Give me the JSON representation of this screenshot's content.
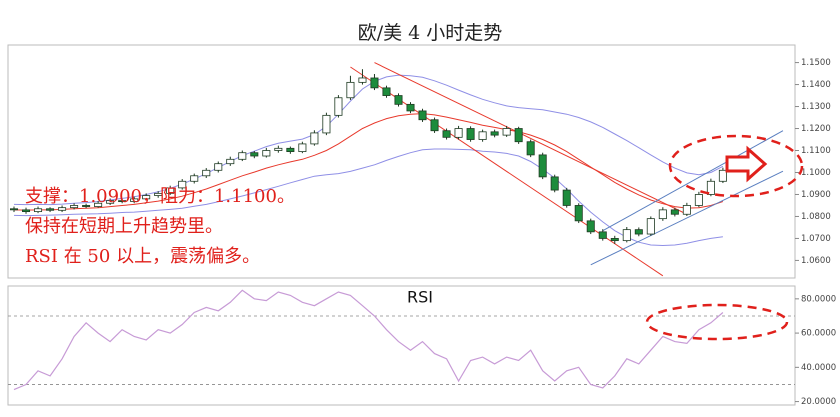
{
  "chart_data": [
    {
      "type": "candlestick",
      "title": "欧/美 4 小时走势",
      "open": [
        1.0835,
        1.083,
        1.0822,
        1.0835,
        1.0828,
        1.084,
        1.085,
        1.0845,
        1.086,
        1.0872,
        1.0868,
        1.088,
        1.0895,
        1.0905,
        1.093,
        1.096,
        1.0985,
        1.101,
        1.104,
        1.106,
        1.109,
        1.1075,
        1.11,
        1.111,
        1.1095,
        1.113,
        1.118,
        1.126,
        1.134,
        1.141,
        1.143,
        1.1385,
        1.135,
        1.131,
        1.128,
        1.124,
        1.119,
        1.116,
        1.12,
        1.115,
        1.1185,
        1.117,
        1.12,
        1.114,
        1.108,
        1.098,
        1.092,
        1.085,
        1.078,
        1.073,
        1.07,
        1.069,
        1.074,
        1.072,
        1.079,
        1.083,
        1.081,
        1.085,
        1.09,
        1.096
      ],
      "high": [
        1.0845,
        1.084,
        1.0845,
        1.0842,
        1.085,
        1.086,
        1.0858,
        1.087,
        1.0882,
        1.088,
        1.089,
        1.0905,
        1.0915,
        1.094,
        1.097,
        1.0995,
        1.102,
        1.105,
        1.1072,
        1.11,
        1.1098,
        1.1112,
        1.1122,
        1.1118,
        1.114,
        1.1192,
        1.1272,
        1.1352,
        1.144,
        1.147,
        1.1448,
        1.1395,
        1.136,
        1.132,
        1.129,
        1.125,
        1.12,
        1.1212,
        1.121,
        1.1195,
        1.1195,
        1.1212,
        1.1208,
        1.115,
        1.109,
        1.099,
        1.093,
        1.086,
        1.079,
        1.0742,
        1.0712,
        1.0752,
        1.075,
        1.08,
        1.0842,
        1.084,
        1.0862,
        1.0912,
        1.0972,
        1.1022
      ],
      "low": [
        1.082,
        1.0812,
        1.0815,
        1.082,
        1.082,
        1.0832,
        1.0838,
        1.084,
        1.0852,
        1.086,
        1.086,
        1.0872,
        1.0885,
        1.0898,
        1.0922,
        1.095,
        1.0975,
        1.1,
        1.103,
        1.1052,
        1.1065,
        1.1068,
        1.109,
        1.1085,
        1.1088,
        1.1122,
        1.117,
        1.125,
        1.133,
        1.14,
        1.1375,
        1.134,
        1.13,
        1.127,
        1.123,
        1.118,
        1.115,
        1.115,
        1.114,
        1.114,
        1.116,
        1.1162,
        1.113,
        1.107,
        1.097,
        1.091,
        1.084,
        1.077,
        1.072,
        1.069,
        1.0675,
        1.0682,
        1.071,
        1.0712,
        1.078,
        1.08,
        1.0802,
        1.0842,
        1.0892,
        1.0952
      ],
      "close": [
        1.083,
        1.0822,
        1.0835,
        1.0828,
        1.084,
        1.085,
        1.0845,
        1.086,
        1.0872,
        1.0868,
        1.088,
        1.0895,
        1.0905,
        1.093,
        1.096,
        1.0985,
        1.101,
        1.104,
        1.106,
        1.109,
        1.1075,
        1.11,
        1.111,
        1.1095,
        1.113,
        1.118,
        1.126,
        1.134,
        1.141,
        1.143,
        1.1385,
        1.135,
        1.131,
        1.128,
        1.124,
        1.119,
        1.116,
        1.12,
        1.115,
        1.1185,
        1.117,
        1.12,
        1.114,
        1.108,
        1.098,
        1.092,
        1.085,
        1.078,
        1.073,
        1.07,
        1.069,
        1.074,
        1.072,
        1.079,
        1.083,
        1.081,
        1.085,
        1.09,
        1.096,
        1.101
      ],
      "up_color": "#ffffff",
      "down_color": "#1d8c3c",
      "edge_color": "#1e3a22",
      "bands": {
        "color": "#e8392c",
        "band_color": "#8f8fe6",
        "values": [
          1.083,
          1.0829,
          1.083,
          1.083,
          1.0832,
          1.0835,
          1.0837,
          1.084,
          1.0845,
          1.085,
          1.0855,
          1.0862,
          1.087,
          1.088,
          1.0892,
          1.0908,
          1.0925,
          1.0945,
          1.0965,
          1.0985,
          1.1002,
          1.102,
          1.1035,
          1.1048,
          1.106,
          1.1078,
          1.11,
          1.113,
          1.1165,
          1.12,
          1.1225,
          1.1245,
          1.1258,
          1.1265,
          1.1268,
          1.1262,
          1.1252,
          1.124,
          1.1228,
          1.1215,
          1.1205,
          1.1195,
          1.1185,
          1.117,
          1.115,
          1.1125,
          1.1095,
          1.106,
          1.1025,
          1.099,
          1.0955,
          1.0925,
          1.0898,
          1.0875,
          1.0858,
          1.0845,
          1.0838,
          1.084,
          1.085,
          1.0868
        ],
        "errors": [
          0.0025,
          0.0025,
          0.0025,
          0.0024,
          0.0024,
          0.0025,
          0.0026,
          0.0028,
          0.003,
          0.0032,
          0.0035,
          0.0038,
          0.0042,
          0.0048,
          0.0055,
          0.0062,
          0.007,
          0.0078,
          0.0085,
          0.0092,
          0.0095,
          0.0098,
          0.0098,
          0.0095,
          0.0092,
          0.0095,
          0.011,
          0.0135,
          0.016,
          0.018,
          0.019,
          0.019,
          0.0185,
          0.0175,
          0.0165,
          0.0155,
          0.0145,
          0.0135,
          0.0125,
          0.0118,
          0.0112,
          0.0108,
          0.011,
          0.012,
          0.0135,
          0.015,
          0.017,
          0.019,
          0.0205,
          0.0215,
          0.022,
          0.022,
          0.0215,
          0.0205,
          0.019,
          0.0175,
          0.016,
          0.015,
          0.015,
          0.016
        ]
      },
      "trendlines": [
        {
          "color": "#e8392c",
          "x": [
            28,
            54
          ],
          "y": [
            1.148,
            1.053
          ]
        },
        {
          "color": "#e8392c",
          "x": [
            30,
            56
          ],
          "y": [
            1.15,
            1.081
          ]
        },
        {
          "color": "#5a7fc0",
          "x": [
            49,
            64
          ],
          "y": [
            1.0735,
            1.119
          ]
        },
        {
          "color": "#5a7fc0",
          "x": [
            48,
            64
          ],
          "y": [
            1.058,
            1.1006
          ]
        }
      ],
      "xlim": [
        -0.5,
        65
      ],
      "ylim": [
        1.052,
        1.158
      ],
      "yticks": [
        {
          "value": 1.15,
          "label": "1.1500"
        },
        {
          "value": 1.14,
          "label": "1.1400"
        },
        {
          "value": 1.13,
          "label": "1.1300"
        },
        {
          "value": 1.12,
          "label": "1.1200"
        },
        {
          "value": 1.11,
          "label": "1.1100"
        },
        {
          "value": 1.1,
          "label": "1.1000"
        },
        {
          "value": 1.09,
          "label": "1.0900"
        },
        {
          "value": 1.08,
          "label": "1.0800"
        },
        {
          "value": 1.07,
          "label": "1.0700"
        },
        {
          "value": 1.06,
          "label": "1.0600"
        }
      ],
      "annotations": [
        "支撑：1.0900，阻力：1.1100。",
        "保持在短期上升趋势里。",
        "RSI 在 50 以上，震荡偏多。"
      ]
    },
    {
      "type": "line",
      "title": "RSI",
      "color": "#c79bd6",
      "values": [
        27,
        30,
        38,
        35,
        45,
        58,
        66,
        60,
        55,
        62,
        58,
        56,
        62,
        60,
        65,
        72,
        75,
        73,
        78,
        85,
        80,
        79,
        84,
        82,
        78,
        76,
        80,
        84,
        82,
        76,
        70,
        62,
        55,
        50,
        55,
        48,
        45,
        32,
        44,
        46,
        42,
        46,
        44,
        50,
        38,
        32,
        38,
        40,
        30,
        28,
        35,
        45,
        42,
        50,
        58,
        55,
        54,
        62,
        66,
        72
      ],
      "levels": [
        70,
        30
      ],
      "xlim": [
        -0.5,
        65
      ],
      "ylim": [
        18,
        87.5
      ],
      "yticks": [
        {
          "value": 80,
          "label": "80.0000"
        },
        {
          "value": 60,
          "label": "60.0000"
        },
        {
          "value": 40,
          "label": "40.0000"
        },
        {
          "value": 20,
          "label": "20.0000"
        }
      ]
    }
  ]
}
